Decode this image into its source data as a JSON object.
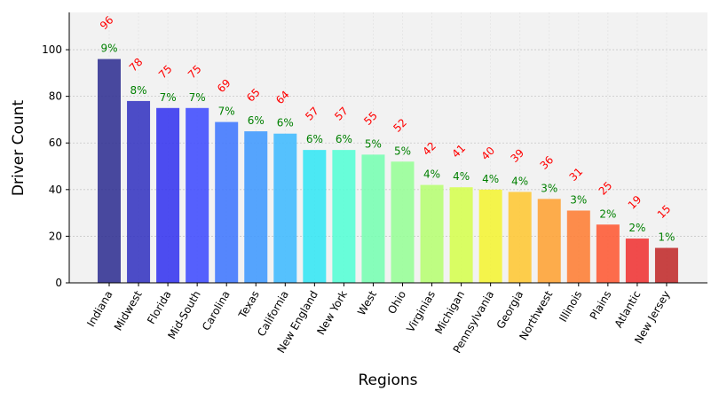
{
  "chart_data": {
    "type": "bar",
    "title": "",
    "xlabel": "Regions",
    "ylabel": "Driver Count",
    "ylim": [
      0,
      116
    ],
    "yticks": [
      0,
      20,
      40,
      60,
      80,
      100
    ],
    "grid": true,
    "categories": [
      "Indiana",
      "Midwest",
      "Florida",
      "Mid-South",
      "Carolina",
      "Texas",
      "California",
      "New England",
      "New York",
      "West",
      "Ohio",
      "Virginias",
      "Michigan",
      "Pennsylvania",
      "Georgia",
      "Northwest",
      "Illinois",
      "Plains",
      "Atlantic",
      "New Jersey"
    ],
    "values": [
      96,
      78,
      75,
      75,
      69,
      65,
      64,
      57,
      57,
      55,
      52,
      42,
      41,
      40,
      39,
      36,
      31,
      25,
      19,
      15
    ],
    "value_labels": [
      "96",
      "78",
      "75",
      "75",
      "69",
      "65",
      "64",
      "57",
      "57",
      "55",
      "52",
      "42",
      "41",
      "40",
      "39",
      "36",
      "31",
      "25",
      "19",
      "15"
    ],
    "percent_labels": [
      "9%",
      "8%",
      "7%",
      "7%",
      "7%",
      "6%",
      "6%",
      "6%",
      "6%",
      "5%",
      "5%",
      "4%",
      "4%",
      "4%",
      "4%",
      "3%",
      "3%",
      "2%",
      "2%",
      "1%"
    ],
    "colors": [
      "#2a2a8f",
      "#2f2fbf",
      "#2f2ff0",
      "#3a47ff",
      "#3a73ff",
      "#3a96ff",
      "#3ab8ff",
      "#2ee6f5",
      "#50ffd5",
      "#73ffb0",
      "#94ff94",
      "#b5ff6e",
      "#d5ff4a",
      "#f5f52e",
      "#ffc72e",
      "#ffa02e",
      "#ff7a2e",
      "#ff552e",
      "#f02e2e",
      "#bf2424"
    ],
    "value_label_color": "#ff0000",
    "percent_label_color": "#008000",
    "plot_background": "#f2f2f2",
    "grid_color": "#c8c8c8"
  }
}
